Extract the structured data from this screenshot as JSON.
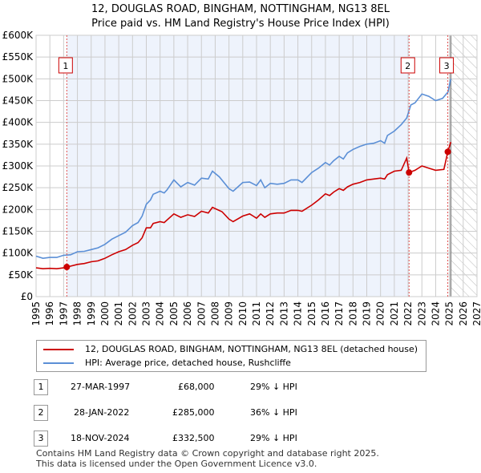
{
  "title_line1": "12, DOUGLAS ROAD, BINGHAM, NOTTINGHAM, NG13 8EL",
  "title_line2": "Price paid vs. HM Land Registry's House Price Index (HPI)",
  "colors": {
    "property": "#cc0000",
    "hpi": "#5b8fd6",
    "shade": "#eef3fc"
  },
  "legend": [
    {
      "label": "12, DOUGLAS ROAD, BINGHAM, NOTTINGHAM, NG13 8EL (detached house)"
    },
    {
      "label": "HPI: Average price, detached house, Rushcliffe"
    }
  ],
  "transactions": [
    {
      "num": "1",
      "date": "27-MAR-1997",
      "price": "£68,000",
      "hpi": "29% ↓ HPI"
    },
    {
      "num": "2",
      "date": "28-JAN-2022",
      "price": "£285,000",
      "hpi": "36% ↓ HPI"
    },
    {
      "num": "3",
      "date": "18-NOV-2024",
      "price": "£332,500",
      "hpi": "29% ↓ HPI"
    }
  ],
  "footer_line1": "Contains HM Land Registry data © Crown copyright and database right 2025.",
  "footer_line2": "This data is licensed under the Open Government Licence v3.0.",
  "chart_data": {
    "type": "line",
    "xlim": [
      1995,
      2027
    ],
    "ylim": [
      0,
      600000
    ],
    "x_ticks": [
      "1995",
      "1996",
      "1997",
      "1998",
      "1999",
      "2000",
      "2001",
      "2002",
      "2003",
      "2004",
      "2005",
      "2006",
      "2007",
      "2008",
      "2009",
      "2010",
      "2011",
      "2012",
      "2013",
      "2014",
      "2015",
      "2016",
      "2017",
      "2018",
      "2019",
      "2020",
      "2021",
      "2022",
      "2023",
      "2024",
      "2025",
      "2026",
      "2027"
    ],
    "y_ticks": [
      {
        "v": 0,
        "label": "£0"
      },
      {
        "v": 50000,
        "label": "£50K"
      },
      {
        "v": 100000,
        "label": "£100K"
      },
      {
        "v": 150000,
        "label": "£150K"
      },
      {
        "v": 200000,
        "label": "£200K"
      },
      {
        "v": 250000,
        "label": "£250K"
      },
      {
        "v": 300000,
        "label": "£300K"
      },
      {
        "v": 350000,
        "label": "£350K"
      },
      {
        "v": 400000,
        "label": "£400K"
      },
      {
        "v": 450000,
        "label": "£450K"
      },
      {
        "v": 500000,
        "label": "£500K"
      },
      {
        "v": 550000,
        "label": "£550K"
      },
      {
        "v": 600000,
        "label": "£600K"
      }
    ],
    "grid": true,
    "forecast_from": 2025.1,
    "sales": [
      {
        "num": "1",
        "x": 1997.23,
        "y": 68000
      },
      {
        "num": "2",
        "x": 2022.07,
        "y": 285000
      },
      {
        "num": "3",
        "x": 2024.88,
        "y": 332500
      }
    ],
    "series": [
      {
        "name": "property",
        "points": [
          [
            1995,
            66
          ],
          [
            1995.5,
            64
          ],
          [
            1996,
            65
          ],
          [
            1996.5,
            64
          ],
          [
            1997,
            66
          ],
          [
            1997.23,
            68
          ],
          [
            1998,
            74
          ],
          [
            1998.5,
            76
          ],
          [
            1999,
            80
          ],
          [
            1999.5,
            82
          ],
          [
            2000,
            88
          ],
          [
            2000.5,
            96
          ],
          [
            2001,
            103
          ],
          [
            2001.5,
            108
          ],
          [
            2002,
            118
          ],
          [
            2002.4,
            124
          ],
          [
            2002.7,
            135
          ],
          [
            2003,
            158
          ],
          [
            2003.3,
            158
          ],
          [
            2003.5,
            168
          ],
          [
            2004,
            172
          ],
          [
            2004.3,
            170
          ],
          [
            2005,
            190
          ],
          [
            2005.5,
            182
          ],
          [
            2006,
            188
          ],
          [
            2006.5,
            184
          ],
          [
            2007,
            196
          ],
          [
            2007.5,
            192
          ],
          [
            2007.8,
            205
          ],
          [
            2008.5,
            195
          ],
          [
            2009,
            178
          ],
          [
            2009.3,
            172
          ],
          [
            2010,
            185
          ],
          [
            2010.5,
            190
          ],
          [
            2010.8,
            184
          ],
          [
            2011,
            180
          ],
          [
            2011.3,
            190
          ],
          [
            2011.6,
            182
          ],
          [
            2012,
            190
          ],
          [
            2012.5,
            192
          ],
          [
            2013,
            192
          ],
          [
            2013.5,
            198
          ],
          [
            2014,
            198
          ],
          [
            2014.3,
            196
          ],
          [
            2015,
            210
          ],
          [
            2015.5,
            222
          ],
          [
            2016,
            236
          ],
          [
            2016.3,
            232
          ],
          [
            2016.6,
            240
          ],
          [
            2017,
            248
          ],
          [
            2017.3,
            244
          ],
          [
            2017.6,
            252
          ],
          [
            2018,
            258
          ],
          [
            2018.5,
            262
          ],
          [
            2019,
            268
          ],
          [
            2019.5,
            270
          ],
          [
            2020,
            272
          ],
          [
            2020.3,
            270
          ],
          [
            2020.5,
            280
          ],
          [
            2021,
            288
          ],
          [
            2021.5,
            290
          ],
          [
            2021.9,
            318
          ],
          [
            2022.07,
            285
          ],
          [
            2022.5,
            290
          ],
          [
            2023,
            300
          ],
          [
            2023.5,
            295
          ],
          [
            2024,
            290
          ],
          [
            2024.6,
            292
          ],
          [
            2024.88,
            332.5
          ],
          [
            2025.1,
            355
          ]
        ]
      },
      {
        "name": "hpi",
        "points": [
          [
            1995,
            93
          ],
          [
            1995.5,
            88
          ],
          [
            1996,
            90
          ],
          [
            1996.5,
            90
          ],
          [
            1997,
            95
          ],
          [
            1997.5,
            96
          ],
          [
            1998,
            103
          ],
          [
            1998.5,
            104
          ],
          [
            1999,
            108
          ],
          [
            1999.5,
            112
          ],
          [
            2000,
            120
          ],
          [
            2000.5,
            132
          ],
          [
            2001,
            140
          ],
          [
            2001.5,
            148
          ],
          [
            2002,
            163
          ],
          [
            2002.4,
            170
          ],
          [
            2002.7,
            185
          ],
          [
            2003,
            212
          ],
          [
            2003.3,
            222
          ],
          [
            2003.5,
            235
          ],
          [
            2004,
            242
          ],
          [
            2004.3,
            238
          ],
          [
            2004.5,
            245
          ],
          [
            2005,
            268
          ],
          [
            2005.5,
            252
          ],
          [
            2006,
            262
          ],
          [
            2006.5,
            256
          ],
          [
            2007,
            272
          ],
          [
            2007.5,
            270
          ],
          [
            2007.8,
            288
          ],
          [
            2008.3,
            275
          ],
          [
            2009,
            248
          ],
          [
            2009.3,
            242
          ],
          [
            2010,
            262
          ],
          [
            2010.5,
            263
          ],
          [
            2011,
            255
          ],
          [
            2011.3,
            268
          ],
          [
            2011.6,
            250
          ],
          [
            2012,
            260
          ],
          [
            2012.5,
            258
          ],
          [
            2013,
            260
          ],
          [
            2013.5,
            268
          ],
          [
            2014,
            268
          ],
          [
            2014.3,
            262
          ],
          [
            2015,
            285
          ],
          [
            2015.5,
            295
          ],
          [
            2016,
            308
          ],
          [
            2016.3,
            302
          ],
          [
            2016.6,
            312
          ],
          [
            2017,
            322
          ],
          [
            2017.3,
            316
          ],
          [
            2017.6,
            330
          ],
          [
            2018,
            338
          ],
          [
            2018.5,
            345
          ],
          [
            2019,
            350
          ],
          [
            2019.5,
            352
          ],
          [
            2020,
            358
          ],
          [
            2020.3,
            352
          ],
          [
            2020.5,
            370
          ],
          [
            2021,
            380
          ],
          [
            2021.5,
            395
          ],
          [
            2021.9,
            410
          ],
          [
            2022.2,
            440
          ],
          [
            2022.5,
            445
          ],
          [
            2023,
            465
          ],
          [
            2023.5,
            460
          ],
          [
            2024,
            450
          ],
          [
            2024.5,
            455
          ],
          [
            2024.9,
            470
          ],
          [
            2025.1,
            500
          ]
        ]
      }
    ],
    "value_unit": "thousands GBP"
  }
}
